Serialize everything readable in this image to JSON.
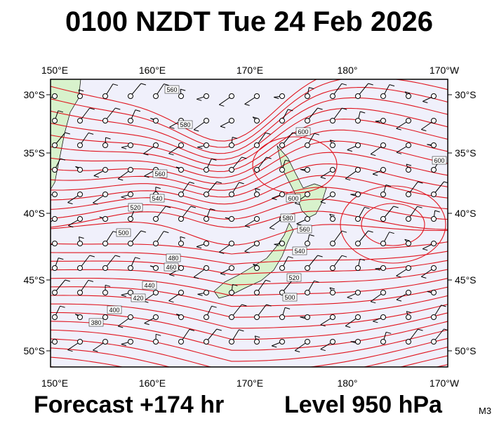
{
  "header": {
    "title": "0100 NZDT Tue 24 Feb 2026"
  },
  "map": {
    "lon_labels": [
      "150°E",
      "160°E",
      "170°E",
      "180°",
      "170°W"
    ],
    "lat_labels": [
      "30°S",
      "35°S",
      "40°S",
      "45°S",
      "50°S"
    ],
    "contour_labels": [
      "560",
      "580",
      "600",
      "600",
      "600",
      "580",
      "560",
      "540",
      "520",
      "500",
      "540",
      "520",
      "500",
      "480",
      "460",
      "440",
      "420",
      "400",
      "380",
      "560"
    ]
  },
  "footer": {
    "forecast": "Forecast +174 hr",
    "level": "Level 950 hPa",
    "code": "M3"
  }
}
